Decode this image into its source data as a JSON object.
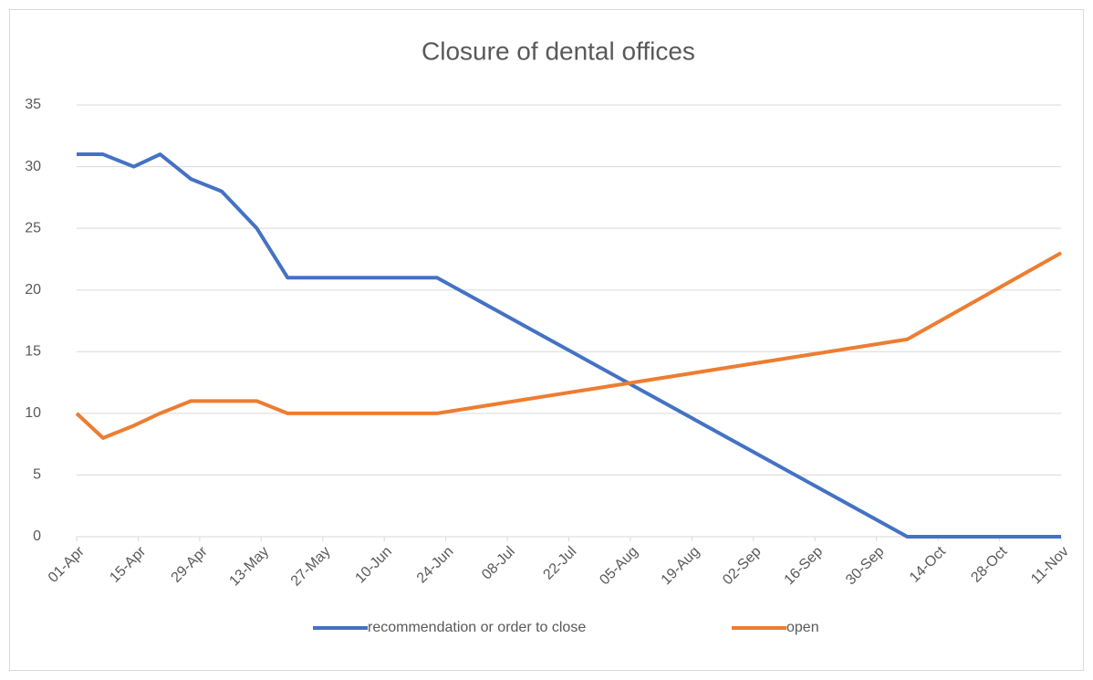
{
  "chart_data": {
    "type": "line",
    "title": "Closure of dental offices",
    "x": [
      "01-Apr",
      "07-Apr",
      "14-Apr",
      "20-Apr",
      "27-Apr",
      "04-May",
      "12-May",
      "19-May",
      "22-Jun",
      "07-Oct",
      "11-Nov"
    ],
    "series": [
      {
        "name": "recommendation or order to close",
        "color": "#4472c4",
        "values": [
          31,
          31,
          30,
          31,
          29,
          28,
          25,
          21,
          21,
          0,
          0
        ]
      },
      {
        "name": "open",
        "color": "#ed7d31",
        "values": [
          10,
          8,
          9,
          10,
          11,
          11,
          11,
          10,
          10,
          16,
          23
        ]
      }
    ],
    "xlim": [
      "01-Apr",
      "11-Nov"
    ],
    "xticks": [
      "01-Apr",
      "15-Apr",
      "29-Apr",
      "13-May",
      "27-May",
      "10-Jun",
      "24-Jun",
      "08-Jul",
      "22-Jul",
      "05-Aug",
      "19-Aug",
      "02-Sep",
      "16-Sep",
      "30-Sep",
      "14-Oct",
      "28-Oct",
      "11-Nov"
    ],
    "ylim": [
      0,
      35
    ],
    "yticks": [
      0,
      5,
      10,
      15,
      20,
      25,
      30,
      35
    ],
    "grid": true,
    "legend": "bottom"
  }
}
